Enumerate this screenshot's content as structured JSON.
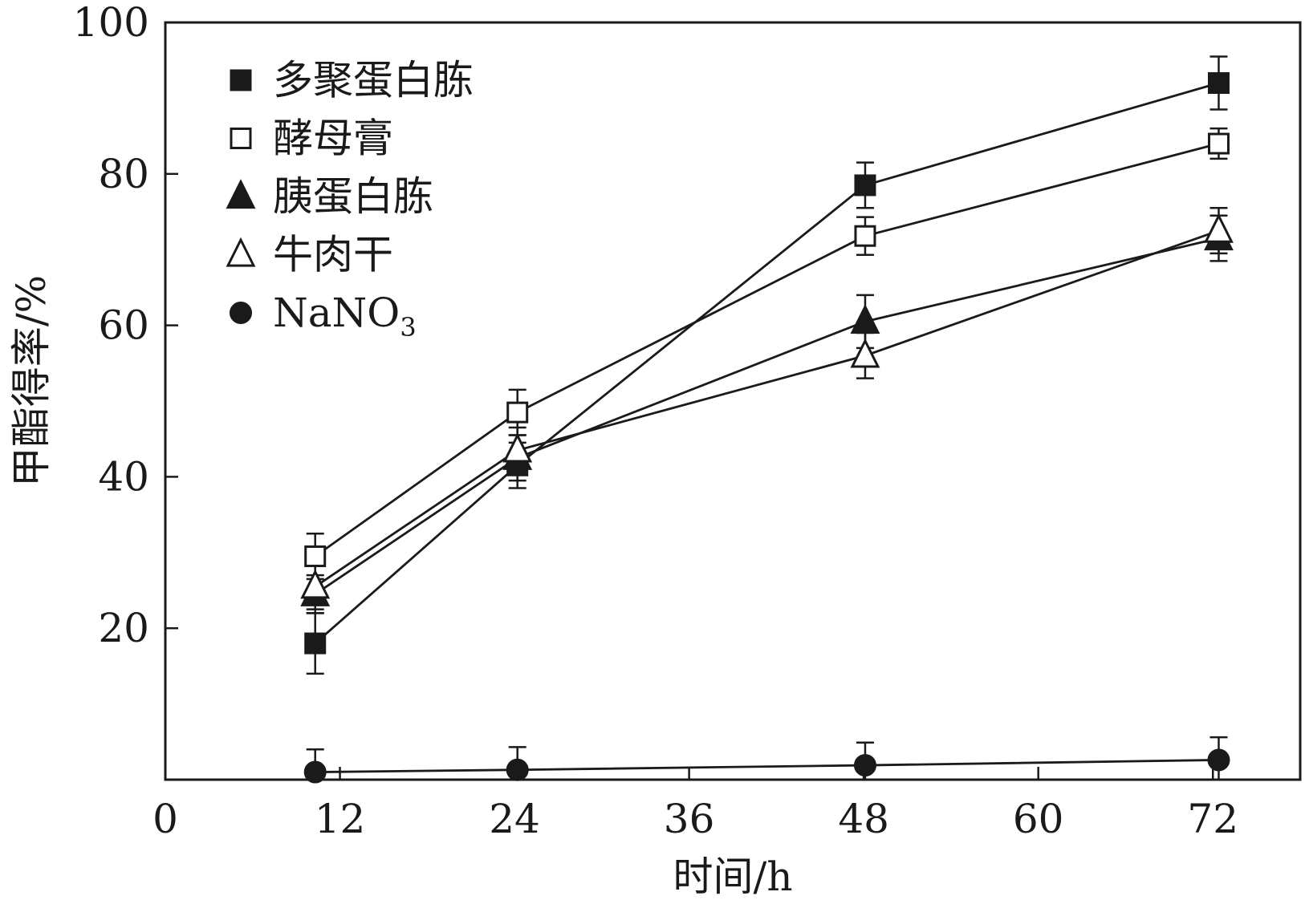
{
  "chart_data": {
    "type": "line",
    "title": "",
    "xlabel": "时间/h",
    "ylabel": "甲酯得率/%",
    "xlim": [
      0,
      78
    ],
    "ylim": [
      0,
      100
    ],
    "x_ticks": [
      0,
      12,
      24,
      36,
      48,
      60,
      72
    ],
    "y_ticks": [
      20,
      40,
      60,
      80,
      100
    ],
    "legend_position": "top-left",
    "x": [
      10.3,
      24.2,
      48.1,
      72.4
    ],
    "series": [
      {
        "name": "多聚蛋白胨",
        "marker": "square-filled",
        "values": [
          18.0,
          41.5,
          78.5,
          92.0
        ],
        "errors": [
          4.0,
          3.0,
          3.0,
          3.5
        ]
      },
      {
        "name": "酵母膏",
        "marker": "square-open",
        "values": [
          29.5,
          48.5,
          71.8,
          84.0
        ],
        "errors": [
          3.0,
          3.0,
          2.5,
          2.0
        ]
      },
      {
        "name": "胰蛋白胨",
        "marker": "triangle-filled",
        "values": [
          24.5,
          42.5,
          60.5,
          71.5
        ],
        "errors": [
          2.5,
          3.0,
          3.5,
          3.0
        ]
      },
      {
        "name": "牛肉干",
        "marker": "triangle-open",
        "values": [
          25.5,
          43.5,
          56.0,
          72.5
        ],
        "errors": [
          3.0,
          3.0,
          3.0,
          3.0
        ]
      },
      {
        "name": "NaNO",
        "name_subscript": "3",
        "marker": "circle-filled",
        "values": [
          1.0,
          1.3,
          1.9,
          2.6
        ],
        "errors": [
          3.0,
          3.0,
          3.0,
          3.0
        ]
      }
    ]
  }
}
